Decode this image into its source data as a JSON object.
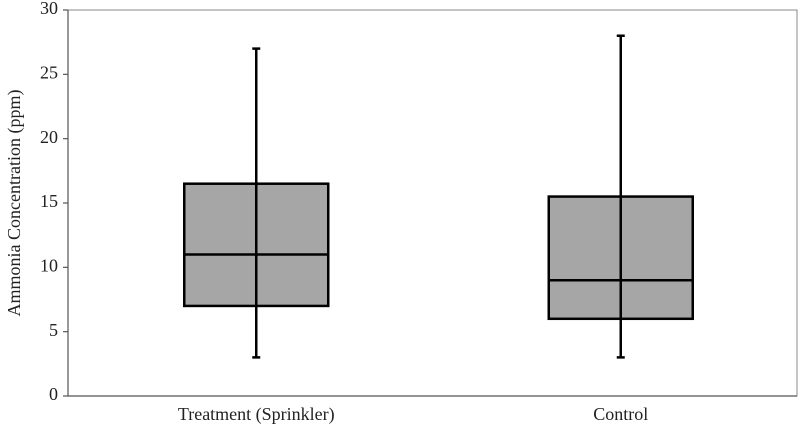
{
  "chart_data": {
    "type": "box",
    "y_label": "Ammonia Concentration (ppm)",
    "categories": [
      "Treatment (Sprinkler)",
      "Control"
    ],
    "min": [
      3,
      3
    ],
    "q1": [
      7,
      6
    ],
    "median": [
      11,
      9
    ],
    "q3": [
      16.5,
      15.5
    ],
    "max": [
      27,
      28
    ],
    "color": "#a6a6a6",
    "ylim": [
      0,
      30
    ],
    "yticks": [
      0,
      5,
      10,
      15,
      20,
      25,
      30
    ],
    "grid": false
  }
}
